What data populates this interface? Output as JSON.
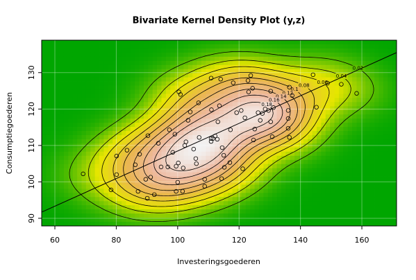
{
  "chart_data": {
    "type": "kde2d",
    "title": "Bivariate Kernel Density Plot (y,z)",
    "x_label": "Investeringsgoederen",
    "y_label": "Consumptiegoederen",
    "xlim": [
      55.7,
      171.3
    ],
    "ylim": [
      87.9,
      138.9
    ],
    "xticks": [
      60,
      80,
      100,
      120,
      140,
      160
    ],
    "yticks": [
      90,
      100,
      110,
      120,
      130
    ],
    "grid": true,
    "contour_levels": [
      0.02,
      0.04,
      0.06,
      0.08,
      0.1,
      0.12,
      0.14,
      0.16,
      0.18
    ],
    "x": [
      69.2,
      78.3,
      80.1,
      80.1,
      83.5,
      86.2,
      87.1,
      87.6,
      89.6,
      90.3,
      90.1,
      91.2,
      92.4,
      93.7,
      94.6,
      96.8,
      97.3,
      98.4,
      99.1,
      99.5,
      100,
      99.5,
      100.2,
      100.4,
      100.9,
      101.6,
      101.8,
      102.3,
      102.7,
      103.4,
      104.1,
      105.2,
      105.9,
      106.1,
      107,
      106.8,
      108.8,
      108.8,
      110.9,
      110.9,
      110.9,
      111.5,
      111,
      112.2,
      112.9,
      113.1,
      113.6,
      114,
      114.3,
      114.5,
      115,
      115.2,
      117,
      117.2,
      118.1,
      119.2,
      120.7,
      121.2,
      121.9,
      122.9,
      123.1,
      123.8,
      124.4,
      124.7,
      125.1,
      126.2,
      126.9,
      127.6,
      128.5,
      129.6,
      130.3,
      131.2,
      130.3,
      130.8,
      136,
      136,
      136,
      136.4,
      136.4,
      137.3,
      144.1,
      145.2,
      148.8,
      153.3,
      158.3
    ],
    "y": [
      102.2,
      97.8,
      102,
      107.1,
      108.7,
      104.7,
      97.4,
      107.6,
      100.7,
      112.7,
      95.5,
      101.3,
      96.5,
      110.6,
      104.1,
      104.1,
      114.3,
      108.1,
      113.1,
      97.4,
      99.9,
      104.3,
      105.2,
      124.7,
      124,
      97.4,
      103.8,
      110,
      111,
      116.9,
      119.2,
      109,
      106.4,
      105,
      112.2,
      121.7,
      100.7,
      98.8,
      111.9,
      111.1,
      128.5,
      111.9,
      119.8,
      112.6,
      111.7,
      116.5,
      120.9,
      128.2,
      100.9,
      109.4,
      107.3,
      104,
      105.3,
      114.3,
      127.2,
      119,
      119.6,
      103.6,
      117.6,
      127.8,
      124.7,
      129.2,
      125.7,
      111.5,
      114.5,
      119,
      116.9,
      118.8,
      120,
      119.6,
      124.9,
      120.4,
      116.5,
      112.4,
      119.6,
      117.4,
      114.7,
      112.2,
      126,
      123.7,
      129.4,
      120.5,
      127.1,
      126.8,
      124.3
    ],
    "fit": {
      "x": [
        55.7,
        171.3
      ],
      "y": [
        91.7,
        135.5
      ]
    },
    "colors": [
      "#00a600",
      "#e6e600",
      "#eab64e",
      "#eeb99f",
      "#f2f2f2"
    ],
    "point_color": "#000000",
    "line_color": "#000000"
  }
}
